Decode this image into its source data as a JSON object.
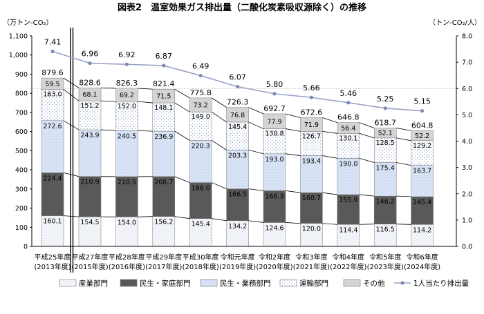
{
  "chart_data": {
    "type": "bar",
    "title": "図表2　温室効果ガス排出量（二酸化炭素吸収源除く）の推移",
    "ylabel_left": "（万トン-CO₂）",
    "ylabel_right": "（トン-CO₂/人）",
    "ylim_left": [
      0,
      1100
    ],
    "ylim_right": [
      0.0,
      8.0
    ],
    "left_ticks": [
      "0",
      "100",
      "200",
      "300",
      "400",
      "500",
      "600",
      "700",
      "800",
      "900",
      "1,000",
      "1,100"
    ],
    "right_ticks": [
      "0.0",
      "1.0",
      "2.0",
      "3.0",
      "4.0",
      "5.0",
      "6.0",
      "7.0",
      "8.0"
    ],
    "legend_position": "bottom",
    "categories": [
      [
        "平成25年度",
        "(2013年度)"
      ],
      [
        "平成27年度",
        "(2015年度)"
      ],
      [
        "平成28年度",
        "(2016年度)"
      ],
      [
        "平成29年度",
        "(2017年度)"
      ],
      [
        "平成30年度",
        "(2018年度)"
      ],
      [
        "令和元年度",
        "(2019年度)"
      ],
      [
        "令和2年度",
        "(2020年度)"
      ],
      [
        "令和3年度",
        "(2021年度)"
      ],
      [
        "令和4年度",
        "(2022年度)"
      ],
      [
        "令和5年度",
        "(2023年度)"
      ],
      [
        "令和6年度",
        "(2024年度)"
      ]
    ],
    "series": [
      {
        "name": "産業部門",
        "values": [
          160.1,
          154.5,
          154.0,
          156.2,
          145.4,
          134.2,
          124.6,
          120.0,
          114.4,
          116.5,
          114.2
        ],
        "labels": [
          "160.1",
          "154.5",
          "154.0",
          "156.2",
          "145.4",
          "134.2",
          "124.6",
          "120.0",
          "114.4",
          "116.5",
          "114.2"
        ],
        "style": "dots"
      },
      {
        "name": "民生・家庭部門",
        "values": [
          224.4,
          210.9,
          210.5,
          208.7,
          188.0,
          166.5,
          166.3,
          160.7,
          155.9,
          146.2,
          145.4
        ],
        "labels": [
          "224.4",
          "210.9",
          "210.5",
          "208.7",
          "188.0",
          "166.5",
          "166.3",
          "160.7",
          "155.9",
          "146.2",
          "145.4"
        ],
        "style": "dark"
      },
      {
        "name": "民生・業務部門",
        "values": [
          272.6,
          243.9,
          240.5,
          236.9,
          220.3,
          203.3,
          193.0,
          193.4,
          190.0,
          175.4,
          163.7
        ],
        "labels": [
          "272.6",
          "243.9",
          "240.5",
          "236.9",
          "220.3",
          "203.3",
          "193.0",
          "193.4",
          "190.0",
          "175.4",
          "163.7"
        ],
        "style": "blue"
      },
      {
        "name": "運輸部門",
        "values": [
          163.0,
          151.2,
          152.0,
          148.1,
          149.0,
          145.4,
          130.8,
          126.7,
          130.1,
          128.5,
          129.2
        ],
        "labels": [
          "163.0",
          "151.2",
          "152.0",
          "148.1",
          "149.0",
          "145.4",
          "130.8",
          "126.7",
          "130.1",
          "128.5",
          "129.2"
        ],
        "style": "dots2"
      },
      {
        "name": "その他",
        "values": [
          59.5,
          68.1,
          69.2,
          71.5,
          73.2,
          76.8,
          77.9,
          71.9,
          56.4,
          52.1,
          52.2
        ],
        "labels": [
          "59.5",
          "68.1",
          "69.2",
          "71.5",
          "73.2",
          "76.8",
          "77.9",
          "71.9",
          "56.4",
          "52.1",
          "52.2"
        ],
        "style": "gray"
      }
    ],
    "totals": {
      "values": [
        879.6,
        828.6,
        826.3,
        821.4,
        775.8,
        726.3,
        692.7,
        672.6,
        646.8,
        618.7,
        604.8
      ],
      "labels": [
        "879.6",
        "828.6",
        "826.3",
        "821.4",
        "775.8",
        "726.3",
        "692.7",
        "672.6",
        "646.8",
        "618.7",
        "604.8"
      ]
    },
    "per_capita": {
      "name": "1人当たり排出量",
      "values": [
        7.41,
        6.96,
        6.92,
        6.87,
        6.49,
        6.07,
        5.8,
        5.66,
        5.46,
        5.25,
        5.15
      ],
      "labels": [
        "7.41",
        "6.96",
        "6.92",
        "6.87",
        "6.49",
        "6.07",
        "5.80",
        "5.66",
        "5.46",
        "5.25",
        "5.15"
      ],
      "axis": "right",
      "color": "#9aa3c8"
    },
    "colors": {
      "dark": "#595959",
      "blue_fill": "#d8e3f5",
      "gray": "#d4d4d4",
      "dot": "#6f86b8",
      "connector": "#000000"
    }
  }
}
